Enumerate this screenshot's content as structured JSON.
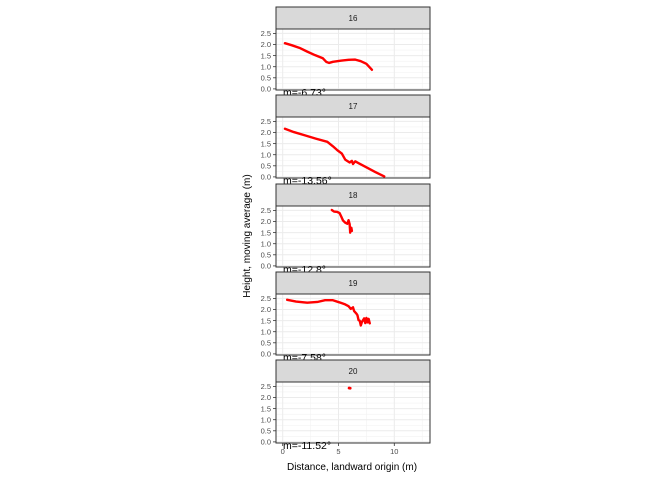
{
  "chart_data": {
    "type": "line",
    "layout": "faceted",
    "xlabel": "Distance, landward origin (m)",
    "ylabel": "Height, moving average (m)",
    "xlim": [
      -0.6,
      13.2
    ],
    "ylim": [
      -0.05,
      2.7
    ],
    "x_ticks": [
      0,
      5,
      10
    ],
    "y_ticks": [
      0.0,
      0.5,
      1.0,
      1.5,
      2.0,
      2.5
    ],
    "y_tick_labels": [
      "0.0",
      "0.5",
      "1.0",
      "1.5",
      "2.0",
      "2.5"
    ],
    "series_color": "#ff0000",
    "panel_strip_color": "#d9d9d9",
    "grid": true,
    "facets": [
      {
        "label": "16",
        "annotation": "m=-6.73°",
        "points": [
          [
            0.2,
            2.06
          ],
          [
            0.8,
            1.97
          ],
          [
            1.5,
            1.85
          ],
          [
            2.2,
            1.68
          ],
          [
            2.9,
            1.52
          ],
          [
            3.6,
            1.38
          ],
          [
            3.9,
            1.22
          ],
          [
            4.15,
            1.17
          ],
          [
            4.5,
            1.22
          ],
          [
            5.2,
            1.27
          ],
          [
            5.9,
            1.31
          ],
          [
            6.5,
            1.32
          ],
          [
            7.0,
            1.25
          ],
          [
            7.5,
            1.13
          ],
          [
            8.0,
            0.86
          ]
        ]
      },
      {
        "label": "17",
        "annotation": "m=-13.56°",
        "points": [
          [
            0.2,
            2.17
          ],
          [
            1.0,
            2.02
          ],
          [
            2.0,
            1.87
          ],
          [
            3.0,
            1.72
          ],
          [
            4.0,
            1.58
          ],
          [
            4.5,
            1.38
          ],
          [
            4.9,
            1.2
          ],
          [
            5.3,
            1.05
          ],
          [
            5.6,
            0.78
          ],
          [
            6.0,
            0.65
          ],
          [
            6.2,
            0.72
          ],
          [
            6.3,
            0.58
          ],
          [
            6.5,
            0.7
          ],
          [
            6.8,
            0.62
          ],
          [
            7.5,
            0.43
          ],
          [
            8.3,
            0.22
          ],
          [
            9.1,
            0.02
          ]
        ]
      },
      {
        "label": "18",
        "annotation": "m=-12.8°",
        "points": [
          [
            4.4,
            2.52
          ],
          [
            4.6,
            2.45
          ],
          [
            4.9,
            2.43
          ],
          [
            5.1,
            2.38
          ],
          [
            5.25,
            2.22
          ],
          [
            5.4,
            2.05
          ],
          [
            5.6,
            1.95
          ],
          [
            5.8,
            1.9
          ],
          [
            5.9,
            2.06
          ],
          [
            6.0,
            1.88
          ],
          [
            6.05,
            1.5
          ],
          [
            6.15,
            1.72
          ],
          [
            6.2,
            1.58
          ]
        ]
      },
      {
        "label": "19",
        "annotation": "m=-7.58°",
        "points": [
          [
            0.4,
            2.44
          ],
          [
            1.2,
            2.36
          ],
          [
            2.2,
            2.31
          ],
          [
            3.1,
            2.34
          ],
          [
            3.8,
            2.42
          ],
          [
            4.5,
            2.42
          ],
          [
            5.1,
            2.32
          ],
          [
            5.6,
            2.23
          ],
          [
            5.9,
            2.15
          ],
          [
            6.1,
            2.03
          ],
          [
            6.3,
            2.1
          ],
          [
            6.4,
            1.93
          ],
          [
            6.6,
            1.82
          ],
          [
            6.7,
            1.74
          ],
          [
            6.8,
            1.52
          ],
          [
            6.9,
            1.5
          ],
          [
            7.0,
            1.28
          ],
          [
            7.1,
            1.44
          ],
          [
            7.3,
            1.6
          ],
          [
            7.4,
            1.39
          ],
          [
            7.5,
            1.62
          ],
          [
            7.6,
            1.42
          ],
          [
            7.7,
            1.58
          ],
          [
            7.8,
            1.38
          ]
        ]
      },
      {
        "label": "20",
        "annotation": "m=-11.52°",
        "points": [
          [
            5.95,
            2.43
          ],
          [
            6.05,
            2.42
          ]
        ]
      }
    ]
  }
}
